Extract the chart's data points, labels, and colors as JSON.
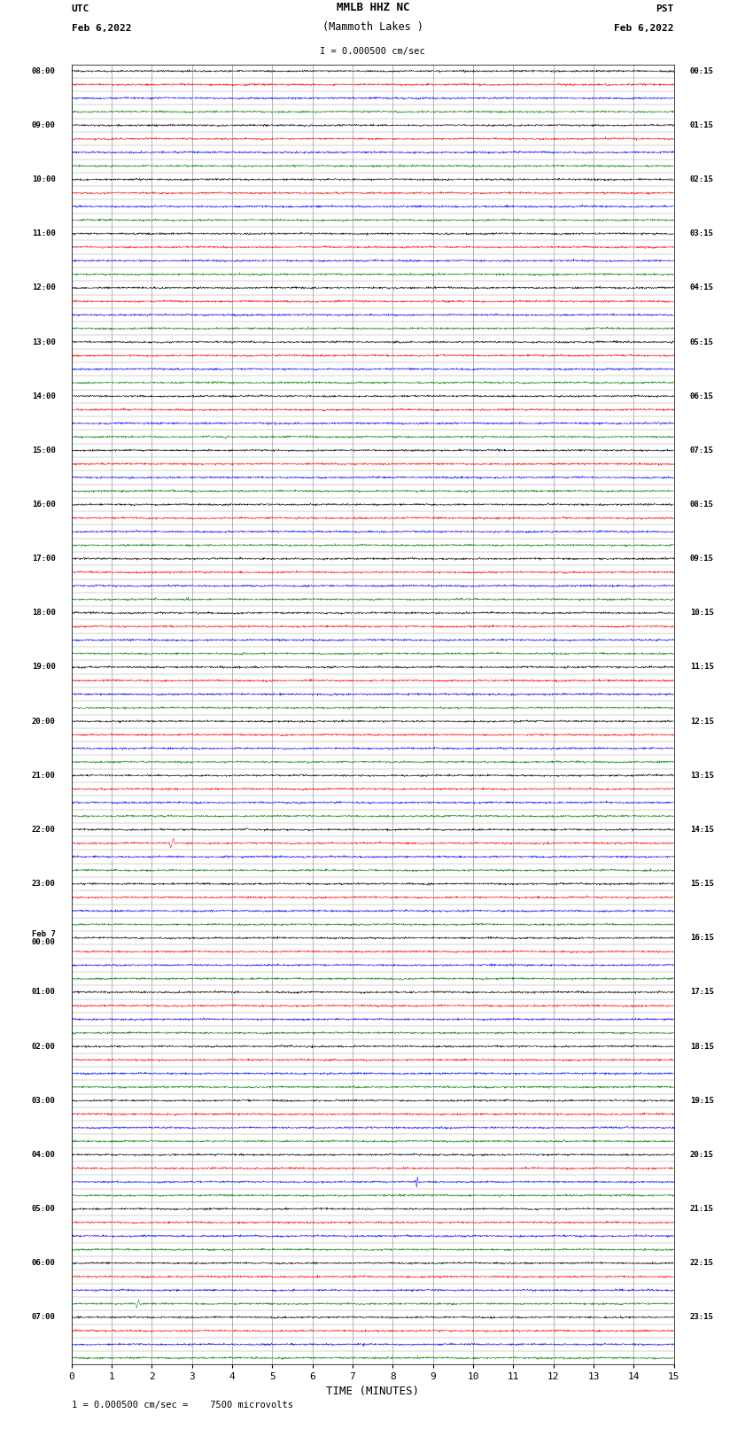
{
  "title_line1": "MMLB HHZ NC",
  "title_line2": "(Mammoth Lakes )",
  "title_scale": "I = 0.000500 cm/sec",
  "left_label_line1": "UTC",
  "left_label_line2": "Feb 6,2022",
  "right_label_line1": "PST",
  "right_label_line2": "Feb 6,2022",
  "bottom_label": "TIME (MINUTES)",
  "bottom_note": "1 = 0.000500 cm/sec =    7500 microvolts",
  "xlabel_ticks": [
    0,
    1,
    2,
    3,
    4,
    5,
    6,
    7,
    8,
    9,
    10,
    11,
    12,
    13,
    14,
    15
  ],
  "left_times_utc": [
    "08:00",
    "09:00",
    "10:00",
    "11:00",
    "12:00",
    "13:00",
    "14:00",
    "15:00",
    "16:00",
    "17:00",
    "18:00",
    "19:00",
    "20:00",
    "21:00",
    "22:00",
    "23:00",
    "Feb 7\n00:00",
    "01:00",
    "02:00",
    "03:00",
    "04:00",
    "05:00",
    "06:00",
    "07:00"
  ],
  "right_times_pst": [
    "00:15",
    "01:15",
    "02:15",
    "03:15",
    "04:15",
    "05:15",
    "06:15",
    "07:15",
    "08:15",
    "09:15",
    "10:15",
    "11:15",
    "12:15",
    "13:15",
    "14:15",
    "15:15",
    "16:15",
    "17:15",
    "18:15",
    "19:15",
    "20:15",
    "21:15",
    "22:15",
    "23:15"
  ],
  "colors_cycle": [
    "black",
    "red",
    "blue",
    "green"
  ],
  "n_rows": 96,
  "n_hour_groups": 24,
  "rows_per_hour": 4,
  "minutes": 15,
  "noise_amplitude": 0.035,
  "background_color": "white",
  "grid_color": "#999999",
  "figure_width": 8.5,
  "figure_height": 16.13,
  "dpi": 100
}
